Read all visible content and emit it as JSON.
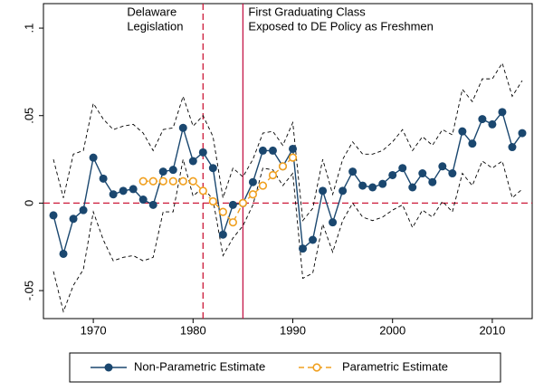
{
  "chart_data": {
    "type": "line",
    "x": [
      1966,
      1967,
      1968,
      1969,
      1970,
      1971,
      1972,
      1973,
      1974,
      1975,
      1976,
      1977,
      1978,
      1979,
      1980,
      1981,
      1982,
      1983,
      1984,
      1985,
      1986,
      1987,
      1988,
      1989,
      1990,
      1991,
      1992,
      1993,
      1994,
      1995,
      1996,
      1997,
      1998,
      1999,
      2000,
      2001,
      2002,
      2003,
      2004,
      2005,
      2006,
      2007,
      2008,
      2009,
      2010,
      2011,
      2012,
      2013
    ],
    "series": [
      {
        "color": "#000000",
        "dash": true,
        "values": [
          0.025,
          0.003,
          0.028,
          0.03,
          0.057,
          0.048,
          0.042,
          0.044,
          0.045,
          0.04,
          0.03,
          0.042,
          0.043,
          0.061,
          0.044,
          0.05,
          0.038,
          0.003,
          0.02,
          0.015,
          0.025,
          0.04,
          0.041,
          0.033,
          0.046,
          -0.01,
          -0.003,
          0.025,
          0.005,
          0.025,
          0.035,
          0.028,
          0.028,
          0.03,
          0.035,
          0.042,
          0.03,
          0.038,
          0.033,
          0.042,
          0.039,
          0.065,
          0.058,
          0.071,
          0.071,
          0.08,
          0.061,
          0.07
        ]
      },
      {
        "color": "#000000",
        "dash": true,
        "values": [
          -0.039,
          -0.062,
          -0.047,
          -0.038,
          -0.005,
          -0.021,
          -0.033,
          -0.031,
          -0.03,
          -0.033,
          -0.031,
          -0.005,
          -0.005,
          0.025,
          0.004,
          0.009,
          0.002,
          -0.03,
          -0.02,
          -0.013,
          -0.001,
          0.02,
          0.019,
          0.01,
          0.017,
          -0.043,
          -0.04,
          -0.012,
          -0.028,
          -0.01,
          0.0,
          -0.008,
          -0.01,
          -0.008,
          -0.004,
          -0.001,
          -0.014,
          -0.004,
          -0.008,
          0.001,
          -0.005,
          0.017,
          0.01,
          0.024,
          0.02,
          0.024,
          0.003,
          0.008
        ]
      },
      {
        "name": "Non-Parametric Estimate",
        "color": "#1a476f",
        "dash": false,
        "marker": "filled",
        "values": [
          -0.007,
          -0.029,
          -0.009,
          -0.004,
          0.026,
          0.014,
          0.005,
          0.007,
          0.008,
          0.002,
          -0.001,
          0.018,
          0.019,
          0.043,
          0.024,
          0.029,
          0.02,
          -0.018,
          -0.001,
          0.0,
          0.012,
          0.03,
          0.03,
          0.021,
          0.031,
          -0.026,
          -0.021,
          0.007,
          -0.011,
          0.007,
          0.018,
          0.01,
          0.009,
          0.011,
          0.016,
          0.02,
          0.009,
          0.017,
          0.012,
          0.021,
          0.017,
          0.041,
          0.034,
          0.048,
          0.045,
          0.052,
          0.032,
          0.04
        ]
      },
      {
        "name": "Parametric Estimate",
        "color": "#f0a020",
        "dash": true,
        "marker": "hollow",
        "values": [
          null,
          null,
          null,
          null,
          null,
          null,
          null,
          null,
          null,
          0.0125,
          0.0125,
          0.0125,
          0.0125,
          0.0125,
          0.0125,
          0.007,
          0.001,
          -0.005,
          -0.011,
          0.0,
          0.005,
          0.01,
          0.016,
          0.021,
          0.026,
          null,
          null,
          null,
          null,
          null,
          null,
          null,
          null,
          null,
          null,
          null,
          null,
          null,
          null,
          null,
          null,
          null,
          null,
          null,
          null,
          null,
          null,
          null
        ]
      }
    ],
    "xlim": [
      1965,
      2014
    ],
    "xticks": [
      1970,
      1980,
      1990,
      2000,
      2010
    ],
    "ylim": [
      -0.066,
      0.114
    ],
    "yticks": [
      {
        "value": -0.05,
        "label": "-.05"
      },
      0,
      {
        "value": 0.05,
        "label": ".05"
      },
      {
        "value": 0.1,
        "label": ".1"
      }
    ],
    "hlines": [
      {
        "value": 0,
        "color": "#cc1a3a",
        "dash": true
      }
    ],
    "vlines": [
      {
        "value": 1981,
        "color": "#cc1a3a",
        "dash": true,
        "label_side": "left",
        "label": [
          "Delaware",
          "Legislation"
        ]
      },
      {
        "value": 1985,
        "color": "#c41648",
        "dash": false,
        "label_side": "right",
        "label": [
          "First Graduating Class",
          "Exposed to DE Policy as Freshmen"
        ]
      }
    ]
  }
}
